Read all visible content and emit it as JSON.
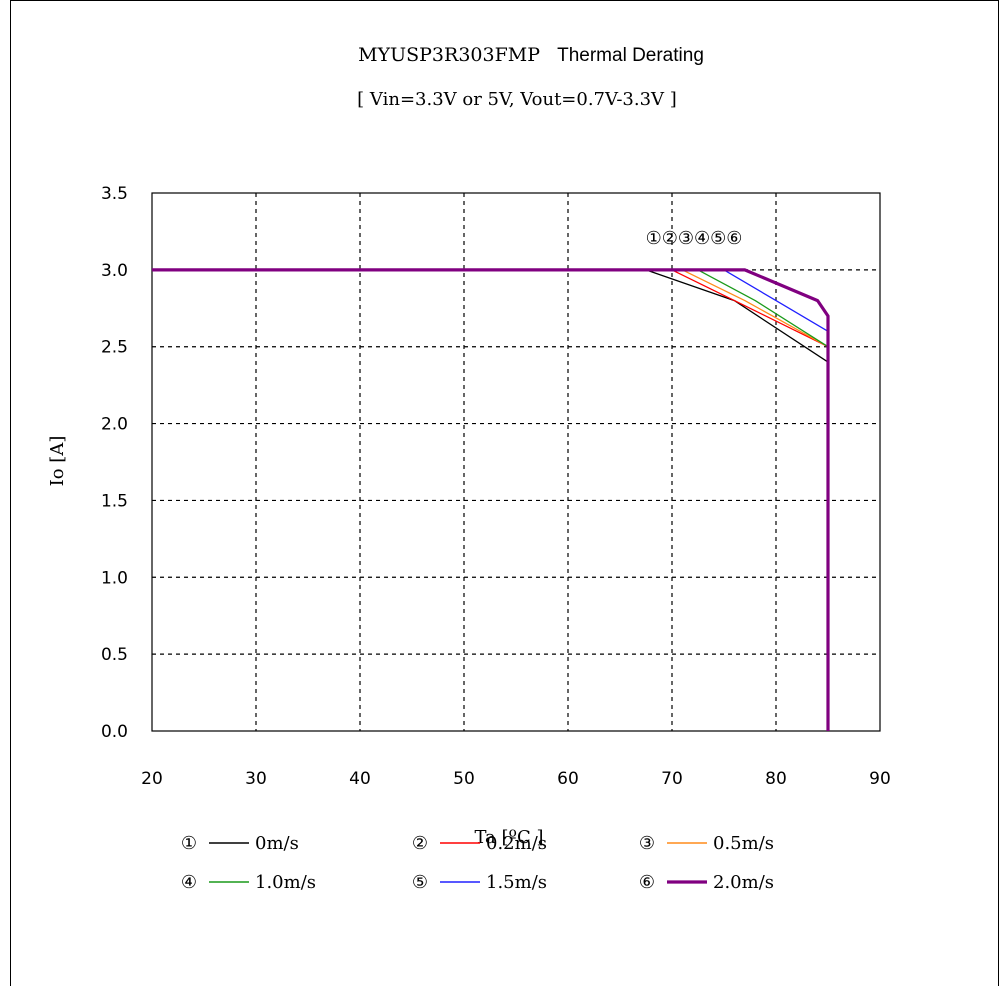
{
  "chart_data": {
    "type": "line",
    "title_part1": "MYUSP3R303FMP",
    "title_part2": "Thermal Derating",
    "subtitle": "[ Vin=3.3V or 5V, Vout=0.7V-3.3V ]",
    "xlabel": "Ta [ºC ]",
    "ylabel": "Io [A]",
    "xlim": [
      20,
      90
    ],
    "ylim": [
      0,
      3.5
    ],
    "xticks": [
      "20",
      "30",
      "40",
      "50",
      "60",
      "70",
      "80",
      "90"
    ],
    "yticks": [
      "0.0",
      "0.5",
      "1.0",
      "1.5",
      "2.0",
      "2.5",
      "3.0",
      "3.5"
    ],
    "grid": true,
    "curve_markers_label": "①②③④⑤⑥",
    "series": [
      {
        "marker": "①",
        "name": "0m/s",
        "color": "#000000",
        "x": [
          20,
          67.5,
          76,
          85,
          85
        ],
        "y": [
          3.0,
          3.0,
          2.8,
          2.4,
          0.0
        ]
      },
      {
        "marker": "②",
        "name": "0.2m/s",
        "color": "#ff0000",
        "x": [
          20,
          70,
          76,
          85,
          85
        ],
        "y": [
          3.0,
          3.0,
          2.8,
          2.5,
          0.0
        ]
      },
      {
        "marker": "③",
        "name": "0.5m/s",
        "color": "#ff8c1a",
        "x": [
          20,
          71,
          77,
          85,
          85
        ],
        "y": [
          3.0,
          3.0,
          2.8,
          2.5,
          0.0
        ]
      },
      {
        "marker": "④",
        "name": "1.0m/s",
        "color": "#1a9a1a",
        "x": [
          20,
          72.5,
          78,
          85,
          85
        ],
        "y": [
          3.0,
          3.0,
          2.8,
          2.5,
          0.0
        ]
      },
      {
        "marker": "⑤",
        "name": "1.5m/s",
        "color": "#2020ff",
        "x": [
          20,
          75,
          80,
          85,
          85
        ],
        "y": [
          3.0,
          3.0,
          2.8,
          2.6,
          0.0
        ]
      },
      {
        "marker": "⑥",
        "name": "2.0m/s",
        "color": "#800080",
        "x": [
          20,
          77,
          84,
          85,
          85
        ],
        "y": [
          3.0,
          3.0,
          2.8,
          2.7,
          0.0
        ]
      }
    ],
    "legend": {
      "placement": "bottom"
    }
  }
}
